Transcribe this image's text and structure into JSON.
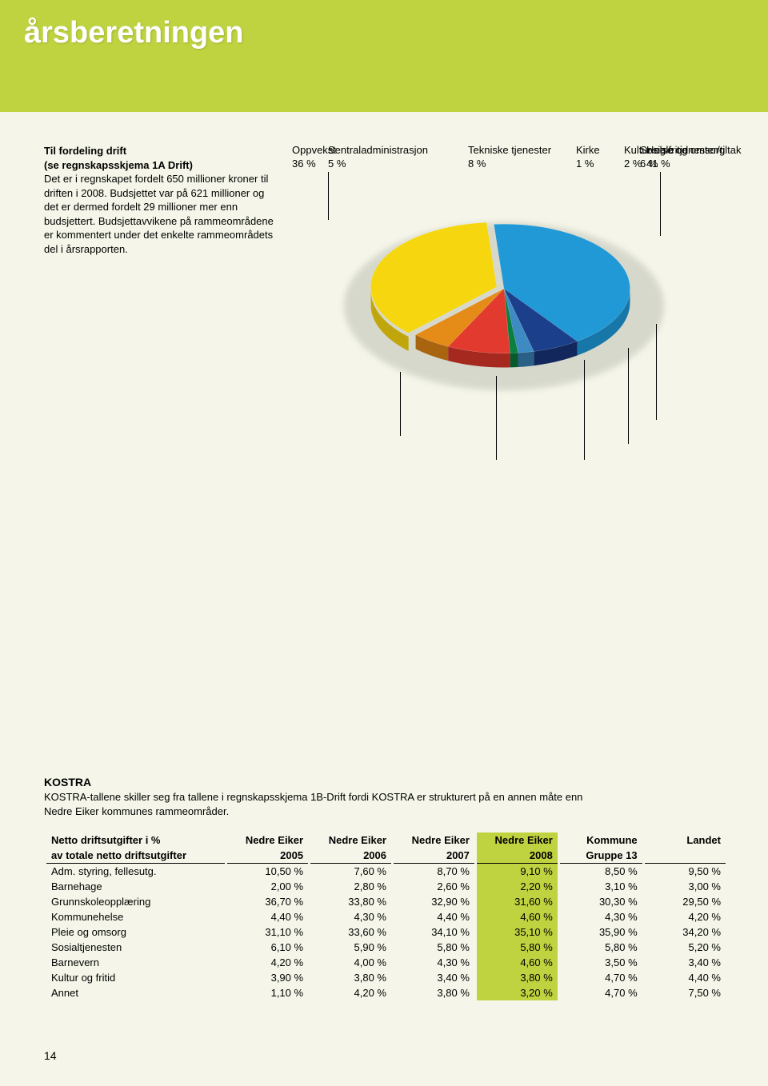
{
  "header": {
    "title": "årsberetningen"
  },
  "intro": {
    "title": "Til fordeling drift",
    "subtitle": "(se regnskapsskjema 1A Drift)",
    "text": "Det er i regnskapet fordelt 650 millioner kroner til driften i 2008. Budsjettet var på 621 millioner og det er dermed fordelt 29 millioner mer enn budsjettert. Budsjettavvikene på rammeområdene er kommentert under det enkelte rammeområdets del i årsrapporten."
  },
  "chart": {
    "type": "pie",
    "labels": {
      "oppvekst": "Oppvekst\n36 %",
      "helse": "Helse og omsorg\n41 %",
      "sentral": "Sentraladministrasjon\n5 %",
      "tekniske": "Tekniske tjenester\n8 %",
      "kirke": "Kirke\n1 %",
      "kultur": "Kultur og fritid\n2 %",
      "sosiale": "Sosiale tjenester/tiltak\n6 %"
    },
    "slices": [
      {
        "name": "helse",
        "value": 41,
        "color": "#2199d6",
        "side": "#1677a8"
      },
      {
        "name": "sosiale",
        "value": 6,
        "color": "#1b3f8a",
        "side": "#12285c"
      },
      {
        "name": "kultur",
        "value": 2,
        "color": "#3e8bc4",
        "side": "#2a5f87"
      },
      {
        "name": "kirke",
        "value": 1,
        "color": "#0b7f3f",
        "side": "#075a2c"
      },
      {
        "name": "tekniske",
        "value": 8,
        "color": "#e23a2e",
        "side": "#a5291f"
      },
      {
        "name": "sentral",
        "value": 5,
        "color": "#e48c17",
        "side": "#a8640f"
      },
      {
        "name": "oppvekst",
        "value": 36,
        "color": "#f6d60e",
        "side": "#c0a60b",
        "pulled": true
      }
    ],
    "background": "#f5f6e9",
    "label_fontsize": 13
  },
  "kostra": {
    "title": "KOSTRA",
    "text": "KOSTRA-tallene skiller seg fra tallene i regnskapsskjema 1B-Drift fordi KOSTRA er strukturert på en annen måte enn Nedre Eiker kommunes rammeområder."
  },
  "table": {
    "header_row1": [
      "Netto driftsutgifter i %",
      "Nedre Eiker",
      "Nedre Eiker",
      "Nedre Eiker",
      "Nedre Eiker",
      "Kommune",
      "Landet"
    ],
    "header_row2": [
      "av totale netto driftsutgifter",
      "2005",
      "2006",
      "2007",
      "2008",
      "Gruppe 13",
      ""
    ],
    "highlight_col_index": 4,
    "rows": [
      [
        "Adm. styring, fellesutg.",
        "10,50 %",
        "7,60 %",
        "8,70 %",
        "9,10 %",
        "8,50 %",
        "9,50 %"
      ],
      [
        "Barnehage",
        "2,00 %",
        "2,80 %",
        "2,60 %",
        "2,20 %",
        "3,10 %",
        "3,00 %"
      ],
      [
        "Grunnskoleopplæring",
        "36,70 %",
        "33,80 %",
        "32,90 %",
        "31,60 %",
        "30,30 %",
        "29,50 %"
      ],
      [
        "Kommunehelse",
        "4,40 %",
        "4,30 %",
        "4,40 %",
        "4,60 %",
        "4,30 %",
        "4,20 %"
      ],
      [
        "Pleie og omsorg",
        "31,10 %",
        "33,60 %",
        "34,10 %",
        "35,10 %",
        "35,90 %",
        "34,20 %"
      ],
      [
        "Sosialtjenesten",
        "6,10 %",
        "5,90 %",
        "5,80 %",
        "5,80 %",
        "5,80 %",
        "5,20 %"
      ],
      [
        "Barnevern",
        "4,20 %",
        "4,00 %",
        "4,30 %",
        "4,60 %",
        "3,50 %",
        "3,40 %"
      ],
      [
        "Kultur og fritid",
        "3,90 %",
        "3,80 %",
        "3,40 %",
        "3,80 %",
        "4,70 %",
        "4,40 %"
      ],
      [
        "Annet",
        "1,10 %",
        "4,20 %",
        "3,80 %",
        "3,20 %",
        "4,70 %",
        "7,50 %"
      ]
    ]
  },
  "page_number": "14"
}
